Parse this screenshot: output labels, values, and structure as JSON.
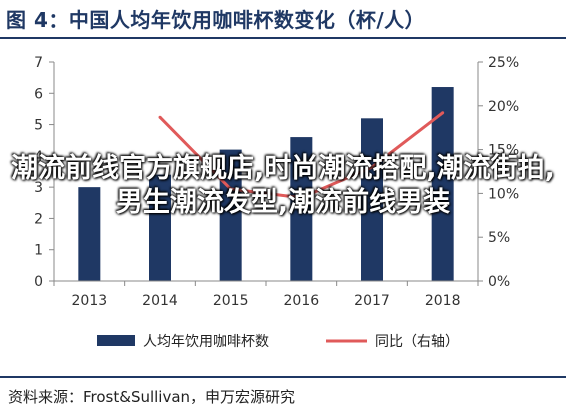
{
  "header": {
    "title": "图 4：中国人均年饮用咖啡杯数变化（杯/人）"
  },
  "footer": {
    "source": "资料来源：Frost&Sullivan，申万宏源研究"
  },
  "watermark": {
    "text": "潮流前线官方旗舰店,时尚潮流搭配,潮流街拍,男生潮流发型,潮流前线男装"
  },
  "colors": {
    "bar": "#1f3864",
    "line": "#e05a5a",
    "axis": "#888888"
  },
  "chart_data": {
    "type": "bar",
    "categories": [
      "2013",
      "2014",
      "2015",
      "2016",
      "2017",
      "2018"
    ],
    "series": [
      {
        "name": "人均年饮用咖啡杯数",
        "type": "bar",
        "axis": "left",
        "values": [
          3.0,
          3.4,
          4.2,
          4.6,
          5.2,
          6.2
        ]
      },
      {
        "name": "同比（右轴）",
        "type": "line",
        "axis": "right",
        "values": [
          null,
          18.7,
          10.5,
          9.5,
          13.0,
          19.2
        ]
      }
    ],
    "y_left": {
      "min": 0,
      "max": 7,
      "ticks": [
        "0",
        "1",
        "2",
        "3",
        "4",
        "5",
        "6",
        "7"
      ]
    },
    "y_right": {
      "min": 0,
      "max": 25,
      "ticks": [
        "0%",
        "5%",
        "10%",
        "15%",
        "20%",
        "25%"
      ]
    },
    "grid": false,
    "legend": {
      "position": "bottom"
    }
  }
}
